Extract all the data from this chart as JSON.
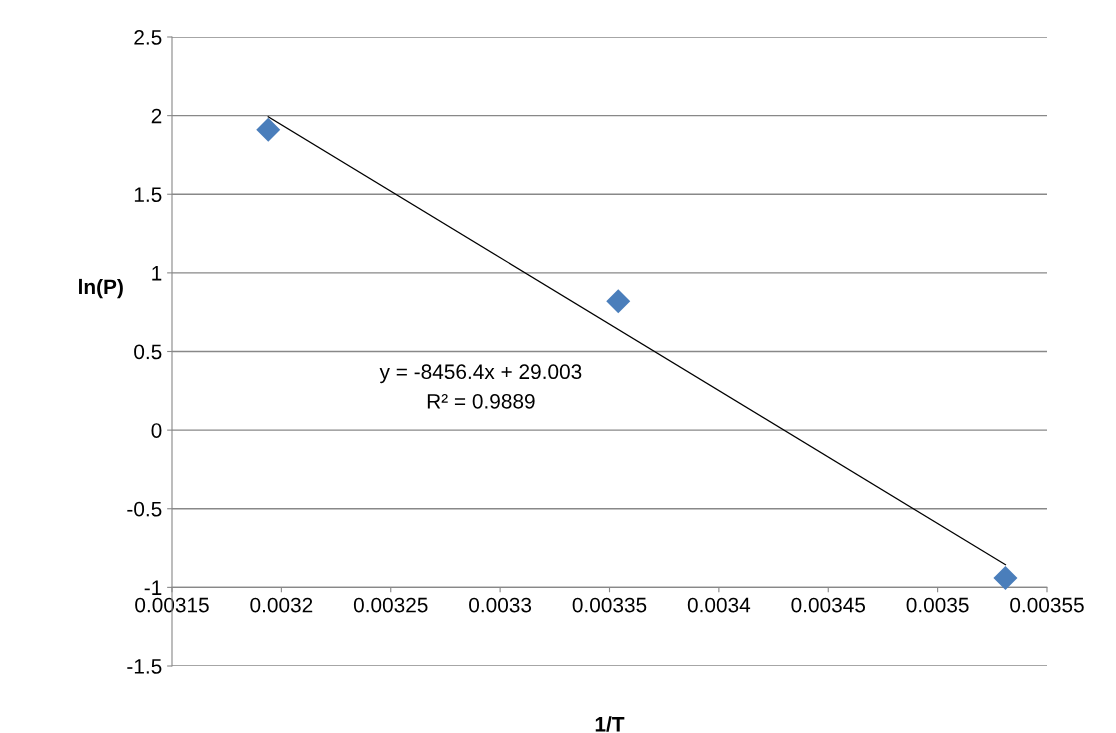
{
  "chart_data": {
    "type": "scatter",
    "xlabel": "1/T",
    "ylabel": "ln(P)",
    "series": [
      {
        "color": "#4a7ebb",
        "marker": "diamond",
        "x": [
          0.003194,
          0.003354,
          0.003531
        ],
        "values": [
          1.91,
          0.82,
          -0.94
        ]
      },
      {
        "type": "line",
        "color": "#000000",
        "marker": "none",
        "line_style": "solid",
        "x": [
          0.003194,
          0.003531
        ],
        "values": [
          1.993,
          -0.856
        ]
      }
    ],
    "xlim": [
      0.00315,
      0.00355
    ],
    "xticks": [
      0.00315,
      0.0032,
      0.00325,
      0.0033,
      0.00335,
      0.0034,
      0.00345,
      0.0035,
      0.00355
    ],
    "ylim": [
      -1.5,
      2.5
    ],
    "yticks": [
      -1.5,
      -1,
      -0.5,
      0,
      0.5,
      1,
      1.5,
      2,
      2.5
    ],
    "grid": "y",
    "legend": false,
    "annotations": [
      "y = -8456.4x + 29.003",
      "R² = 0.9889"
    ]
  }
}
